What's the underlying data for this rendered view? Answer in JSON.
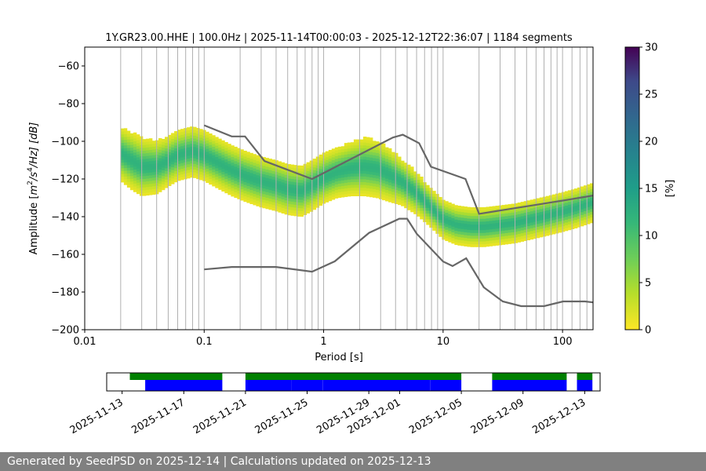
{
  "footer": {
    "text": "Generated by SeedPSD on 2025-12-14 | Calculations updated on 2025-12-13"
  },
  "colors": {
    "noise_model": "#666666",
    "availability_green": "#008000",
    "availability_blue": "#0000ff",
    "grid": "#b0b0b0"
  },
  "chart_data": [
    {
      "type": "heatmap",
      "title": "1Y.GR23.00.HHE | 100.0Hz | 2025-11-14T00:00:03 - 2025-12-12T22:36:07 | 1184 segments",
      "xlabel": "Period [s]",
      "ylabel_parts": {
        "pre": "Amplitude [",
        "m": "m",
        "exp1": "2",
        "mid": "/s",
        "exp2": "4",
        "post": "/Hz] [dB]"
      },
      "x_scale": "log",
      "xlim": [
        0.01,
        180
      ],
      "ylim": [
        -200,
        -50
      ],
      "x_ticks": [
        0.01,
        0.1,
        1,
        10,
        100
      ],
      "x_tick_labels": [
        "0.01",
        "0.1",
        "1",
        "10",
        "100"
      ],
      "y_ticks": [
        -200,
        -180,
        -160,
        -140,
        -120,
        -100,
        -80,
        -60
      ],
      "y_tick_labels": [
        "−200",
        "−180",
        "−160",
        "−140",
        "−120",
        "−100",
        "−80",
        "−60"
      ],
      "grid": true,
      "colorbar": {
        "label": "[%]",
        "range": [
          0,
          30
        ],
        "ticks": [
          0,
          5,
          10,
          15,
          20,
          25,
          30
        ],
        "colormap": "viridis_r"
      },
      "period_grid_lines": [
        0.02,
        0.03,
        0.04,
        0.05,
        0.06,
        0.07,
        0.08,
        0.09,
        0.1,
        0.2,
        0.3,
        0.4,
        0.5,
        0.6,
        0.7,
        0.8,
        0.9,
        1,
        2,
        3,
        4,
        5,
        6,
        7,
        8,
        9,
        10,
        20,
        30,
        40,
        50,
        60,
        70,
        80,
        90,
        100,
        120,
        140,
        160
      ],
      "psd_density": {
        "period": [
          0.02,
          0.025,
          0.03,
          0.04,
          0.05,
          0.06,
          0.08,
          0.1,
          0.13,
          0.17,
          0.22,
          0.3,
          0.4,
          0.5,
          0.65,
          0.8,
          1.0,
          1.3,
          1.7,
          2.2,
          2.8,
          3.5,
          4.5,
          6.0,
          8.0,
          10,
          13,
          17,
          22,
          30,
          40,
          55,
          75,
          100,
          130,
          180
        ],
        "mode_db": [
          -107,
          -111,
          -114,
          -114,
          -111,
          -108,
          -106,
          -108,
          -112,
          -116,
          -119,
          -122,
          -124,
          -126,
          -127,
          -124,
          -120,
          -117,
          -115,
          -114,
          -115,
          -118,
          -122,
          -128,
          -136,
          -142,
          -145,
          -146,
          -146,
          -145,
          -144,
          -142,
          -140,
          -138,
          -136,
          -133
        ],
        "spread_db": [
          14,
          15,
          15,
          14,
          13,
          13,
          13,
          13,
          13,
          13,
          13,
          13,
          13,
          13,
          13,
          13,
          13,
          13,
          14,
          15,
          15,
          14,
          12,
          11,
          10,
          10,
          10,
          10,
          10,
          10,
          10,
          10,
          10,
          10,
          10,
          10
        ],
        "peak_percent": 12
      },
      "series": [
        {
          "name": "",
          "style": "noise model",
          "x": [
            0.1,
            0.17,
            0.22,
            0.32,
            0.8,
            3.8,
            4.6,
            6.3,
            7.9,
            15.4,
            20,
            100,
            180
          ],
          "y": [
            -91.5,
            -97.4,
            -97.4,
            -110.5,
            -120,
            -98,
            -96.5,
            -101,
            -113.5,
            -120,
            -138.5,
            -131.5,
            -128.8
          ]
        },
        {
          "name": "",
          "style": "noise model",
          "x": [
            0.1,
            0.17,
            0.4,
            0.8,
            1.24,
            2.4,
            4.3,
            5.0,
            6.0,
            10,
            12,
            15.6,
            21.9,
            31.6,
            45,
            70,
            101,
            154,
            180
          ],
          "y": [
            -168.0,
            -166.7,
            -166.7,
            -169.2,
            -163.7,
            -148.6,
            -141.1,
            -141.1,
            -149.0,
            -163.8,
            -166.2,
            -162.1,
            -177.5,
            -185.0,
            -187.5,
            -187.5,
            -185.0,
            -185.0,
            -185.5
          ]
        }
      ]
    },
    {
      "type": "bar",
      "title": "",
      "x_ticks": [
        "2025-11-13",
        "2025-11-17",
        "2025-11-21",
        "2025-11-25",
        "2025-11-29",
        "2025-12-01",
        "2025-12-05",
        "2025-12-09",
        "2025-12-13"
      ],
      "xlim": [
        "2025-11-12",
        "2025-12-14"
      ],
      "series": [
        {
          "name": "",
          "row": "top",
          "color": "green",
          "segments": [
            [
              "2025-11-13T12:00",
              "2025-11-19T12:00"
            ],
            [
              "2025-11-21T00:00",
              "2025-12-05T00:00"
            ],
            [
              "2025-12-07T00:00",
              "2025-12-11T20:00"
            ],
            [
              "2025-12-12T12:00",
              "2025-12-13T12:00"
            ]
          ]
        },
        {
          "name": "",
          "row": "bottom",
          "color": "blue",
          "segments": [
            [
              "2025-11-14T12:00",
              "2025-11-19T12:00"
            ],
            [
              "2025-11-21T00:00",
              "2025-11-24T00:00"
            ],
            [
              "2025-11-24T00:10",
              "2025-11-26T00:00"
            ],
            [
              "2025-11-26T00:10",
              "2025-12-03T00:00"
            ],
            [
              "2025-12-03T00:10",
              "2025-12-05T00:00"
            ],
            [
              "2025-12-07T00:00",
              "2025-12-11T20:00"
            ],
            [
              "2025-12-12T12:00",
              "2025-12-13T12:00"
            ]
          ]
        }
      ]
    }
  ]
}
